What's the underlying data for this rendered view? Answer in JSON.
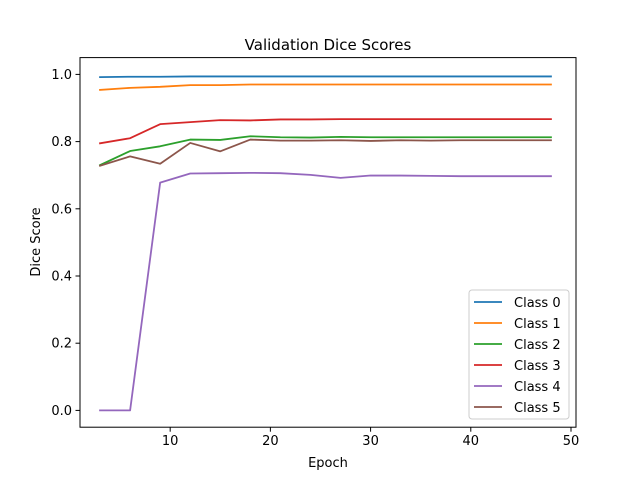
{
  "chart_data": {
    "type": "line",
    "title": "Validation Dice Scores",
    "xlabel": "Epoch",
    "ylabel": "Dice Score",
    "xlim": [
      1.0,
      50.5
    ],
    "ylim": [
      -0.05,
      1.05
    ],
    "xticks": [
      10,
      20,
      30,
      40,
      50
    ],
    "yticks": [
      0.0,
      0.2,
      0.4,
      0.6,
      0.8,
      1.0
    ],
    "xtick_labels": [
      "10",
      "20",
      "30",
      "40",
      "50"
    ],
    "ytick_labels": [
      "0.0",
      "0.2",
      "0.4",
      "0.6",
      "0.8",
      "1.0"
    ],
    "grid": false,
    "legend_position": "lower-right",
    "x": [
      3,
      6,
      9,
      12,
      15,
      18,
      21,
      24,
      27,
      30,
      33,
      36,
      39,
      42,
      45,
      48
    ],
    "series": [
      {
        "name": "Class 0",
        "color": "#1f77b4",
        "values": [
          0.992,
          0.993,
          0.993,
          0.994,
          0.994,
          0.994,
          0.994,
          0.994,
          0.994,
          0.994,
          0.994,
          0.994,
          0.994,
          0.994,
          0.994,
          0.994
        ]
      },
      {
        "name": "Class 1",
        "color": "#ff7f0e",
        "values": [
          0.954,
          0.96,
          0.963,
          0.968,
          0.968,
          0.97,
          0.97,
          0.97,
          0.97,
          0.97,
          0.97,
          0.97,
          0.97,
          0.97,
          0.97,
          0.97
        ]
      },
      {
        "name": "Class 2",
        "color": "#2ca02c",
        "values": [
          0.73,
          0.772,
          0.786,
          0.806,
          0.805,
          0.816,
          0.813,
          0.812,
          0.814,
          0.813,
          0.813,
          0.813,
          0.813,
          0.813,
          0.813,
          0.813
        ]
      },
      {
        "name": "Class 3",
        "color": "#d62728",
        "values": [
          0.795,
          0.81,
          0.852,
          0.858,
          0.864,
          0.863,
          0.866,
          0.866,
          0.867,
          0.867,
          0.867,
          0.867,
          0.867,
          0.867,
          0.867,
          0.867
        ]
      },
      {
        "name": "Class 4",
        "color": "#9467bd",
        "values": [
          0.0,
          0.0,
          0.678,
          0.705,
          0.706,
          0.707,
          0.706,
          0.701,
          0.692,
          0.699,
          0.699,
          0.698,
          0.697,
          0.697,
          0.697,
          0.697
        ]
      },
      {
        "name": "Class 5",
        "color": "#8c564b",
        "values": [
          0.728,
          0.756,
          0.734,
          0.796,
          0.771,
          0.806,
          0.803,
          0.803,
          0.804,
          0.802,
          0.804,
          0.803,
          0.804,
          0.804,
          0.804,
          0.804
        ]
      }
    ]
  }
}
